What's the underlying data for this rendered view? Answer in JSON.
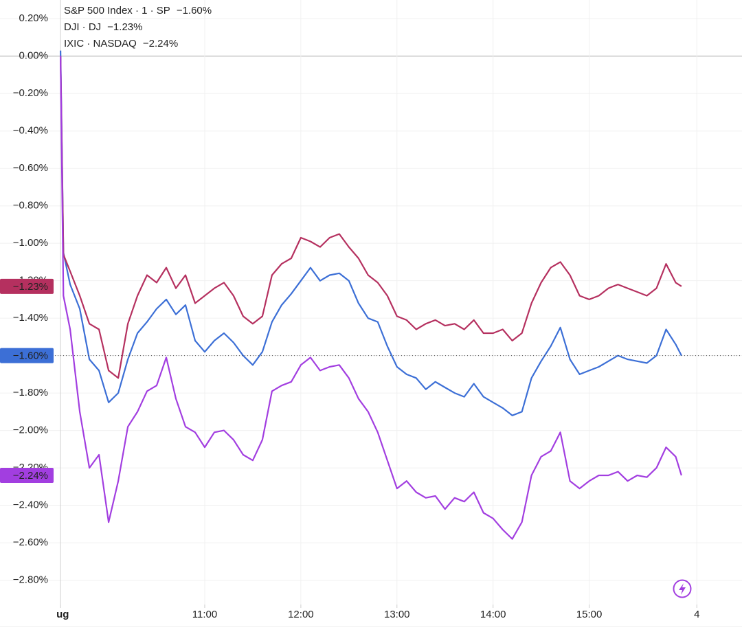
{
  "chart_data": {
    "type": "line",
    "x": [
      9.5,
      9.53,
      9.6,
      9.7,
      9.8,
      9.9,
      10.0,
      10.1,
      10.2,
      10.3,
      10.4,
      10.5,
      10.6,
      10.7,
      10.8,
      10.9,
      11.0,
      11.1,
      11.2,
      11.3,
      11.4,
      11.5,
      11.6,
      11.7,
      11.8,
      11.9,
      12.0,
      12.1,
      12.2,
      12.3,
      12.4,
      12.5,
      12.6,
      12.7,
      12.8,
      12.9,
      13.0,
      13.1,
      13.2,
      13.3,
      13.4,
      13.5,
      13.6,
      13.7,
      13.8,
      13.9,
      14.0,
      14.1,
      14.2,
      14.3,
      14.4,
      14.5,
      14.6,
      14.7,
      14.8,
      14.9,
      15.0,
      15.1,
      15.2,
      15.3,
      15.4,
      15.5,
      15.6,
      15.7,
      15.8,
      15.9,
      15.96
    ],
    "series": [
      {
        "name": "S&P 500 Index · 1 · SP",
        "color": "#3c6fd6",
        "last_value_label": "−1.60%",
        "values": [
          0.03,
          -1.05,
          -1.22,
          -1.35,
          -1.62,
          -1.68,
          -1.85,
          -1.8,
          -1.62,
          -1.48,
          -1.42,
          -1.35,
          -1.3,
          -1.38,
          -1.33,
          -1.52,
          -1.58,
          -1.52,
          -1.48,
          -1.53,
          -1.6,
          -1.65,
          -1.58,
          -1.42,
          -1.33,
          -1.27,
          -1.2,
          -1.13,
          -1.2,
          -1.17,
          -1.16,
          -1.2,
          -1.32,
          -1.4,
          -1.42,
          -1.55,
          -1.66,
          -1.7,
          -1.72,
          -1.78,
          -1.74,
          -1.77,
          -1.8,
          -1.82,
          -1.75,
          -1.82,
          -1.85,
          -1.88,
          -1.92,
          -1.9,
          -1.72,
          -1.63,
          -1.55,
          -1.45,
          -1.62,
          -1.7,
          -1.68,
          -1.66,
          -1.63,
          -1.6,
          -1.62,
          -1.63,
          -1.64,
          -1.6,
          -1.46,
          -1.54,
          -1.6
        ]
      },
      {
        "name": "DJI · DJ",
        "color": "#b5305f",
        "last_value_label": "−1.23%",
        "values": [
          0.0,
          -1.06,
          -1.15,
          -1.28,
          -1.43,
          -1.46,
          -1.68,
          -1.72,
          -1.43,
          -1.28,
          -1.17,
          -1.21,
          -1.13,
          -1.24,
          -1.17,
          -1.32,
          -1.28,
          -1.24,
          -1.21,
          -1.28,
          -1.39,
          -1.43,
          -1.39,
          -1.17,
          -1.11,
          -1.08,
          -0.97,
          -0.99,
          -1.02,
          -0.97,
          -0.95,
          -1.02,
          -1.08,
          -1.17,
          -1.21,
          -1.28,
          -1.39,
          -1.41,
          -1.46,
          -1.43,
          -1.41,
          -1.44,
          -1.43,
          -1.46,
          -1.41,
          -1.48,
          -1.48,
          -1.46,
          -1.52,
          -1.48,
          -1.32,
          -1.21,
          -1.13,
          -1.1,
          -1.17,
          -1.28,
          -1.3,
          -1.28,
          -1.24,
          -1.22,
          -1.24,
          -1.26,
          -1.28,
          -1.24,
          -1.11,
          -1.21,
          -1.23
        ]
      },
      {
        "name": "IXIC · NASDAQ",
        "color": "#a23ee0",
        "last_value_label": "−2.24%",
        "values": [
          0.0,
          -1.28,
          -1.46,
          -1.9,
          -2.2,
          -2.13,
          -2.49,
          -2.27,
          -1.98,
          -1.9,
          -1.79,
          -1.76,
          -1.61,
          -1.83,
          -1.98,
          -2.01,
          -2.09,
          -2.01,
          -2.0,
          -2.05,
          -2.13,
          -2.16,
          -2.05,
          -1.79,
          -1.76,
          -1.74,
          -1.65,
          -1.61,
          -1.68,
          -1.66,
          -1.65,
          -1.72,
          -1.83,
          -1.9,
          -2.01,
          -2.16,
          -2.31,
          -2.27,
          -2.33,
          -2.36,
          -2.35,
          -2.42,
          -2.36,
          -2.38,
          -2.33,
          -2.44,
          -2.47,
          -2.53,
          -2.58,
          -2.49,
          -2.24,
          -2.14,
          -2.11,
          -2.01,
          -2.27,
          -2.31,
          -2.27,
          -2.24,
          -2.24,
          -2.22,
          -2.27,
          -2.24,
          -2.25,
          -2.2,
          -2.09,
          -2.14,
          -2.24
        ]
      }
    ],
    "xlim": [
      8.87,
      16.59
    ],
    "xticks": [
      {
        "value": 9.5,
        "label": "ug"
      },
      {
        "value": 11,
        "label": "11:00"
      },
      {
        "value": 12,
        "label": "12:00"
      },
      {
        "value": 13,
        "label": "13:00"
      },
      {
        "value": 14,
        "label": "14:00"
      },
      {
        "value": 15,
        "label": "15:00"
      },
      {
        "value": 16.12,
        "label": "4"
      }
    ],
    "ylim": [
      -2.93,
      0.3
    ],
    "yticks": [
      {
        "value": 0.2,
        "label": "0.20%"
      },
      {
        "value": 0,
        "label": "0.00%"
      },
      {
        "value": -0.2,
        "label": "−0.20%"
      },
      {
        "value": -0.4,
        "label": "−0.40%"
      },
      {
        "value": -0.6,
        "label": "−0.60%"
      },
      {
        "value": -0.8,
        "label": "−0.80%"
      },
      {
        "value": -1.0,
        "label": "−1.00%"
      },
      {
        "value": -1.2,
        "label": "−1.20%"
      },
      {
        "value": -1.4,
        "label": "−1.40%"
      },
      {
        "value": -1.6,
        "label": "−1.60%"
      },
      {
        "value": -1.8,
        "label": "−1.80%"
      },
      {
        "value": -2.0,
        "label": "−2.00%"
      },
      {
        "value": -2.2,
        "label": "−2.20%"
      },
      {
        "value": -2.4,
        "label": "−2.40%"
      },
      {
        "value": -2.6,
        "label": "−2.60%"
      },
      {
        "value": -2.8,
        "label": "−2.80%"
      }
    ],
    "grid": true
  }
}
